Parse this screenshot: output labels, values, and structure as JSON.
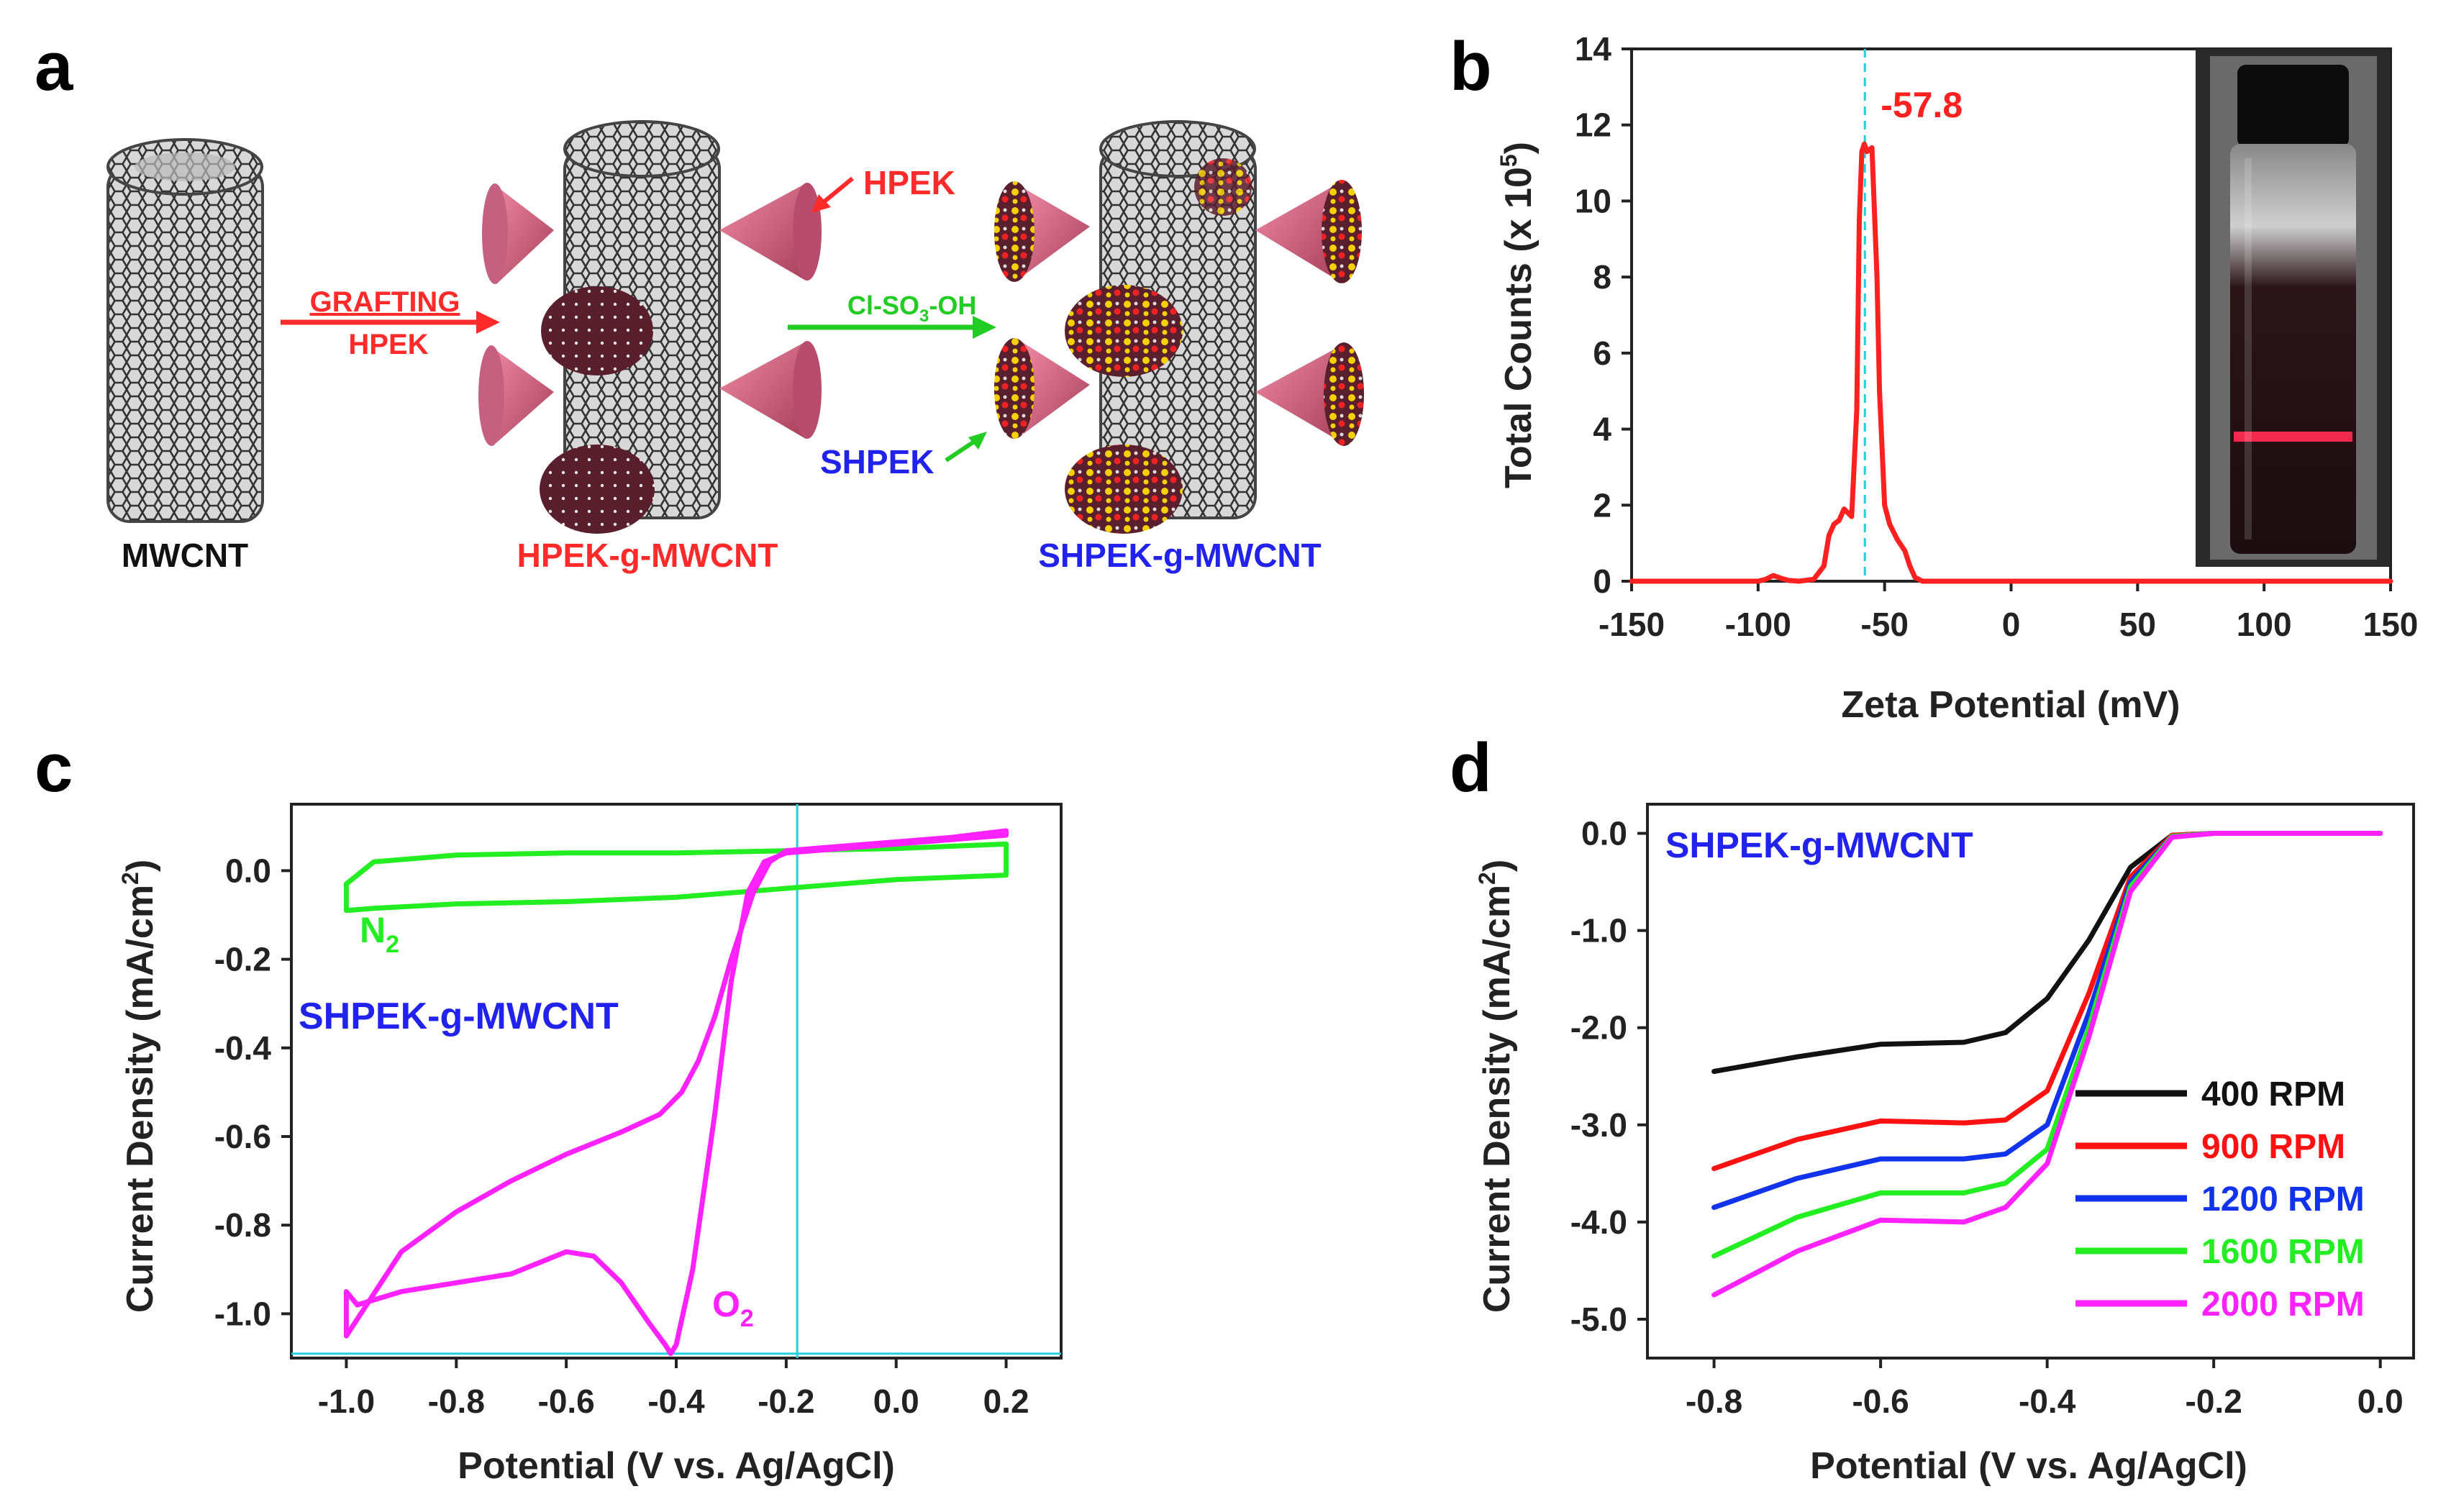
{
  "panels": {
    "a": {
      "letter": "a",
      "labels": {
        "mwcnt": "MWCNT",
        "hpek_g_mwcnt": "HPEK-g-MWCNT",
        "shpek_g_mwcnt": "SHPEK-g-MWCNT",
        "grafting": "GRAFTING",
        "hpek_arrow": "HPEK",
        "hpek_pointer": "HPEK",
        "reagent_main": "Cl-SO",
        "reagent_sub": "3",
        "reagent_tail": "-OH",
        "shpek_pointer": "SHPEK"
      },
      "colors": {
        "red": "#ff2a2a",
        "green": "#22cc22",
        "blue": "#2222ee",
        "cone": "#d9607f",
        "tube": "#444444"
      }
    },
    "b": {
      "letter": "b",
      "ylabel_main": "Total Counts (x 10",
      "ylabel_sup": "5",
      "ylabel_tail": ")",
      "inset_name": "vial-photo"
    },
    "c": {
      "letter": "c",
      "ylabel_main": "Current Density (mA/cm",
      "ylabel_sup": "2",
      "ylabel_tail": ")"
    },
    "d": {
      "letter": "d",
      "ylabel_main": "Current Density (mA/cm",
      "ylabel_sup": "2",
      "ylabel_tail": ")"
    }
  },
  "chart_data": [
    {
      "id": "b",
      "type": "line",
      "title": "",
      "xlabel": "Zeta Potential (mV)",
      "ylabel": "Total Counts (x 10^5)",
      "xlim": [
        -150,
        150
      ],
      "ylim": [
        0,
        14
      ],
      "xticks": [
        -150,
        -100,
        -50,
        0,
        50,
        100,
        150
      ],
      "yticks": [
        0,
        2,
        4,
        6,
        8,
        10,
        12,
        14
      ],
      "annotation": "-57.8",
      "peak_marker_x": -57.8,
      "series": [
        {
          "name": "zeta",
          "color": "#ff2020",
          "x": [
            -150,
            -100,
            -97,
            -94,
            -91,
            -88,
            -84,
            -78,
            -74,
            -72,
            -70,
            -68,
            -66,
            -63,
            -61,
            -60,
            -59,
            -58,
            -57,
            -55,
            -53,
            -52,
            -50,
            -48,
            -45,
            -42,
            -40,
            -38,
            -35,
            0,
            150
          ],
          "y": [
            0,
            0,
            0.05,
            0.15,
            0.08,
            0.02,
            0,
            0.05,
            0.4,
            1.2,
            1.5,
            1.6,
            1.9,
            1.7,
            4.5,
            9.5,
            11.3,
            11.5,
            11.3,
            11.4,
            8.0,
            5.0,
            2.0,
            1.5,
            1.1,
            0.8,
            0.4,
            0.1,
            0,
            0,
            0
          ]
        }
      ]
    },
    {
      "id": "c",
      "type": "line",
      "title": "",
      "xlabel": "Potential (V vs. Ag/AgCl)",
      "ylabel": "Current Density (mA/cm^2)",
      "xlim": [
        -1.1,
        0.3
      ],
      "ylim": [
        -1.1,
        0.15
      ],
      "xticks": [
        -1.0,
        -0.8,
        -0.6,
        -0.4,
        -0.2,
        0.0,
        0.2
      ],
      "yticks": [
        0.0,
        -0.2,
        -0.4,
        -0.6,
        -0.8,
        -1.0
      ],
      "annotation_text": "SHPEK-g-MWCNT",
      "crosshair": {
        "x": -0.18,
        "y": -1.09
      },
      "series": [
        {
          "name": "N",
          "sub": "2",
          "color": "#22ee22",
          "x": [
            0.2,
            0.0,
            -0.2,
            -0.4,
            -0.6,
            -0.8,
            -0.95,
            -1.0,
            -1.0,
            -0.95,
            -0.8,
            -0.6,
            -0.4,
            -0.2,
            0.0,
            0.2,
            0.2
          ],
          "y": [
            0.06,
            0.05,
            0.045,
            0.04,
            0.04,
            0.035,
            0.02,
            -0.03,
            -0.09,
            -0.085,
            -0.075,
            -0.07,
            -0.06,
            -0.04,
            -0.02,
            -0.01,
            0.06
          ]
        },
        {
          "name": "O",
          "sub": "2",
          "color": "#ff22ff",
          "x": [
            0.2,
            0.1,
            0.0,
            -0.1,
            -0.2,
            -0.23,
            -0.26,
            -0.3,
            -0.33,
            -0.36,
            -0.39,
            -0.43,
            -0.5,
            -0.6,
            -0.7,
            -0.8,
            -0.9,
            -1.0,
            -1.0,
            -0.98,
            -0.9,
            -0.8,
            -0.7,
            -0.6,
            -0.55,
            -0.5,
            -0.45,
            -0.42,
            -0.41,
            -0.4,
            -0.37,
            -0.33,
            -0.3,
            -0.27,
            -0.24,
            -0.2,
            -0.1,
            0.0,
            0.1,
            0.2,
            0.2
          ],
          "y": [
            0.09,
            0.075,
            0.065,
            0.055,
            0.045,
            0.02,
            -0.05,
            -0.2,
            -0.33,
            -0.43,
            -0.5,
            -0.55,
            -0.59,
            -0.64,
            -0.7,
            -0.77,
            -0.86,
            -1.05,
            -0.95,
            -0.98,
            -0.95,
            -0.93,
            -0.91,
            -0.86,
            -0.87,
            -0.93,
            -1.02,
            -1.07,
            -1.09,
            -1.07,
            -0.9,
            -0.55,
            -0.25,
            -0.05,
            0.02,
            0.04,
            0.05,
            0.06,
            0.07,
            0.08,
            0.09
          ]
        }
      ]
    },
    {
      "id": "d",
      "type": "line",
      "title": "",
      "xlabel": "Potential (V vs. Ag/AgCl)",
      "ylabel": "Current Density (mA/cm^2)",
      "xlim": [
        -0.88,
        0.04
      ],
      "ylim": [
        -5.4,
        0.3
      ],
      "xticks": [
        -0.8,
        -0.6,
        -0.4,
        -0.2,
        0.0
      ],
      "yticks": [
        0.0,
        -1.0,
        -2.0,
        -3.0,
        -4.0,
        -5.0
      ],
      "annotation_text": "SHPEK-g-MWCNT",
      "legend": "middle-right",
      "series": [
        {
          "name": "400 RPM",
          "color": "#111111",
          "x": [
            -0.8,
            -0.7,
            -0.6,
            -0.5,
            -0.45,
            -0.4,
            -0.35,
            -0.3,
            -0.25,
            -0.2,
            -0.1,
            0.0
          ],
          "y": [
            -2.45,
            -2.3,
            -2.17,
            -2.15,
            -2.05,
            -1.7,
            -1.1,
            -0.35,
            -0.02,
            0.0,
            0.0,
            0.0
          ]
        },
        {
          "name": "900 RPM",
          "color": "#ff1111",
          "x": [
            -0.8,
            -0.7,
            -0.6,
            -0.5,
            -0.45,
            -0.4,
            -0.35,
            -0.3,
            -0.25,
            -0.2,
            -0.1,
            0.0
          ],
          "y": [
            -3.45,
            -3.15,
            -2.96,
            -2.98,
            -2.95,
            -2.65,
            -1.65,
            -0.45,
            -0.02,
            0.0,
            0.0,
            0.0
          ]
        },
        {
          "name": "1200 RPM",
          "color": "#1133ee",
          "x": [
            -0.8,
            -0.7,
            -0.6,
            -0.5,
            -0.45,
            -0.4,
            -0.35,
            -0.3,
            -0.25,
            -0.2,
            -0.1,
            0.0
          ],
          "y": [
            -3.85,
            -3.55,
            -3.35,
            -3.35,
            -3.3,
            -3.0,
            -1.85,
            -0.5,
            -0.03,
            0.0,
            0.0,
            0.0
          ]
        },
        {
          "name": "1600 RPM",
          "color": "#22ee22",
          "x": [
            -0.8,
            -0.7,
            -0.6,
            -0.5,
            -0.45,
            -0.4,
            -0.35,
            -0.3,
            -0.25,
            -0.2,
            -0.1,
            0.0
          ],
          "y": [
            -4.35,
            -3.95,
            -3.7,
            -3.7,
            -3.6,
            -3.25,
            -2.0,
            -0.55,
            -0.03,
            0.0,
            0.0,
            0.0
          ]
        },
        {
          "name": "2000 RPM",
          "color": "#ff22ff",
          "x": [
            -0.8,
            -0.7,
            -0.6,
            -0.5,
            -0.45,
            -0.4,
            -0.35,
            -0.3,
            -0.25,
            -0.2,
            -0.1,
            0.0
          ],
          "y": [
            -4.75,
            -4.3,
            -3.98,
            -4.0,
            -3.85,
            -3.4,
            -2.1,
            -0.6,
            -0.04,
            0.0,
            0.0,
            0.0
          ]
        }
      ]
    }
  ]
}
